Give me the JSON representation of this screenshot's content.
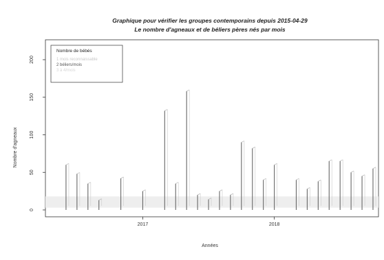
{
  "chart_data": {
    "type": "bar",
    "title": "Graphique pour vérifier les groupes contemporains depuis 2015-04-29",
    "subtitle": "Le nombre d'agneaux et de béliers pères nés par mois",
    "xlabel": "Années",
    "ylabel": "Nombre d'agneaux",
    "ylim": [
      0,
      200
    ],
    "y_ticks": [
      0,
      50,
      100,
      150,
      200
    ],
    "x_tick_labels": [
      "2017",
      "2018"
    ],
    "x_tick_positions": [
      "2017-01",
      "2018-01"
    ],
    "xlim": [
      "2016-05",
      "2018-10"
    ],
    "legend": {
      "title": "Nombre de bébés",
      "placement": "top-left",
      "entries": [
        {
          "label": "1 mois reconnaissable",
          "color": "#c8c8c8"
        },
        {
          "label": "2 béliers/mois",
          "color": "#555555"
        },
        {
          "label": "3 à 4/mois",
          "color": "#d6d6d6"
        }
      ]
    },
    "reference_band": [
      3,
      18
    ],
    "series": [
      {
        "x": [
          "2016-06",
          "2016-07",
          "2016-08",
          "2016-09",
          "2016-11",
          "2017-01",
          "2017-03",
          "2017-04",
          "2017-05",
          "2017-06",
          "2017-07",
          "2017-08",
          "2017-09",
          "2017-10",
          "2017-11",
          "2017-12",
          "2018-01",
          "2018-03",
          "2018-04",
          "2018-05",
          "2018-06",
          "2018-07",
          "2018-08",
          "2018-09",
          "2018-10"
        ],
        "values": [
          60,
          48,
          35,
          13,
          42,
          25,
          132,
          35,
          158,
          20,
          14,
          25,
          20,
          90,
          82,
          40,
          60,
          40,
          28,
          38,
          65,
          65,
          50,
          45,
          55
        ]
      }
    ]
  }
}
